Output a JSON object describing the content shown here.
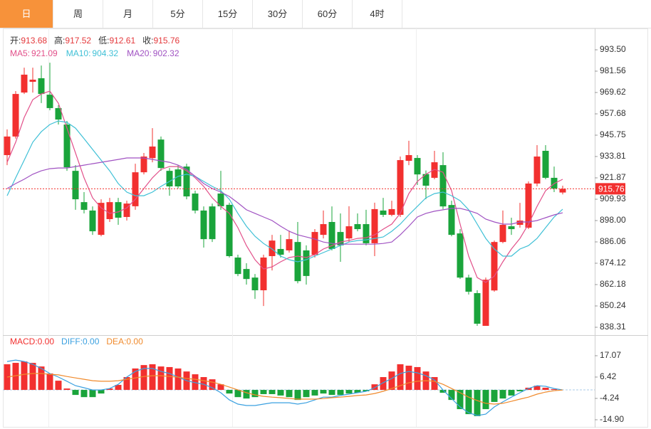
{
  "tabs": [
    "日",
    "周",
    "月",
    "5分",
    "15分",
    "30分",
    "60分",
    "4时"
  ],
  "active_tab": 0,
  "chart_data": [
    {
      "type": "candlestick",
      "info": [
        {
          "label": "开:",
          "value": 913.68
        },
        {
          "label": "高:",
          "value": 917.52
        },
        {
          "label": "低:",
          "value": 912.61
        },
        {
          "label": "收:",
          "value": 915.76
        }
      ],
      "info_value_color": "#e4393c",
      "legend": [
        {
          "label": "MA5:",
          "value": 921.09,
          "color": "#e2508a"
        },
        {
          "label": "MA10:",
          "value": 904.32,
          "color": "#3fc0d6"
        },
        {
          "label": "MA20:",
          "value": 902.32,
          "color": "#a052c2"
        }
      ],
      "up_color": "#f2302f",
      "down_color": "#1aa43b",
      "open": [
        934.6,
        945.0,
        969.6,
        975.6,
        977.6,
        968.4,
        960.9,
        951.7,
        925.8,
        908.3,
        903.6,
        890.0,
        898.8,
        908.3,
        900.0,
        906.0,
        925.0,
        932.9,
        943.3,
        925.8,
        926.6,
        928.2,
        913.1,
        903.6,
        905.9,
        913.1,
        906.8,
        877.3,
        870.9,
        866.1,
        859.0,
        878.1,
        882.1,
        881.3,
        886.0,
        881.3,
        878.9,
        890.0,
        897.2,
        891.6,
        888.0,
        896.0,
        896.0,
        885.3,
        903.6,
        901.2,
        901.2,
        931.4,
        933.0,
        924.0,
        921.9,
        929.0,
        906.7,
        890.8,
        866.1,
        857.4,
        839.1,
        858.9,
        886.0,
        894.8,
        895.6,
        894.0,
        918.7,
        937.0,
        921.9,
        913.68
      ],
      "high": [
        949.0,
        970.4,
        983.5,
        983.5,
        984.7,
        986.3,
        962.5,
        953.7,
        929.0,
        913.9,
        905.9,
        909.9,
        910.7,
        910.7,
        909.1,
        929.8,
        935.8,
        949.7,
        945.0,
        927.4,
        929.0,
        929.8,
        914.7,
        905.9,
        907.5,
        925.8,
        908.0,
        878.9,
        874.1,
        868.1,
        878.9,
        890.0,
        890.0,
        892.4,
        897.2,
        884.1,
        893.2,
        903.6,
        905.9,
        902.0,
        906.0,
        902.0,
        904.0,
        908.0,
        910.7,
        909.1,
        933.8,
        942.6,
        934.6,
        926.0,
        937.0,
        936.2,
        909.1,
        893.2,
        867.7,
        859.0,
        866.1,
        886.8,
        903.6,
        899.6,
        907.9,
        919.9,
        940.2,
        940.2,
        928.2,
        917.52
      ],
      "low": [
        929.0,
        943.8,
        968.8,
        969.6,
        963.7,
        959.7,
        951.7,
        925.8,
        904.0,
        902.0,
        890.0,
        889.2,
        897.2,
        895.6,
        898.0,
        904.0,
        923.8,
        930.6,
        925.8,
        911.9,
        915.9,
        909.9,
        902.0,
        882.9,
        886.0,
        904.0,
        877.3,
        866.9,
        862.2,
        854.2,
        850.2,
        870.1,
        877.3,
        880.1,
        862.9,
        862.2,
        877.3,
        888.0,
        881.3,
        874.9,
        886.0,
        892.0,
        884.1,
        878.1,
        900.0,
        900.4,
        900.0,
        929.0,
        917.9,
        910.0,
        921.1,
        904.4,
        889.2,
        865.3,
        856.6,
        839.1,
        839.1,
        858.2,
        885.3,
        890.0,
        894.0,
        893.2,
        917.1,
        921.1,
        913.9,
        912.61
      ],
      "close": [
        945.0,
        968.8,
        979.6,
        976.8,
        968.8,
        960.9,
        954.5,
        927.8,
        909.9,
        904.0,
        892.0,
        907.9,
        908.3,
        899.6,
        907.5,
        925.0,
        933.8,
        939.4,
        927.4,
        917.1,
        917.1,
        911.5,
        903.6,
        887.6,
        887.6,
        906.0,
        878.1,
        868.1,
        865.3,
        859.0,
        877.3,
        886.8,
        878.9,
        887.6,
        864.1,
        867.0,
        891.6,
        896.0,
        882.1,
        884.1,
        894.8,
        893.2,
        885.3,
        904.4,
        901.2,
        904.4,
        931.8,
        934.6,
        923.8,
        917.5,
        930.6,
        905.9,
        890.0,
        866.1,
        858.2,
        840.3,
        864.9,
        886.0,
        895.6,
        893.2,
        898.0,
        918.7,
        933.8,
        921.9,
        915.9,
        915.76
      ],
      "series": [
        {
          "color": "#e2508a",
          "values": [
            930.6,
            941.8,
            955.7,
            965.6,
            968.8,
            970.4,
            963.6,
            949.7,
            935.8,
            921.9,
            910.7,
            905.1,
            902.0,
            902.8,
            905.1,
            909.9,
            915.9,
            921.9,
            926.6,
            928.2,
            928.2,
            925.8,
            921.9,
            917.1,
            910.7,
            905.9,
            902.0,
            894.0,
            884.0,
            876.1,
            870.9,
            872.1,
            874.9,
            877.3,
            878.1,
            877.3,
            878.9,
            882.1,
            884.0,
            886.0,
            886.8,
            888.0,
            888.4,
            890.0,
            893.2,
            896.0,
            902.0,
            913.1,
            919.9,
            923.9,
            926.6,
            925.0,
            914.7,
            896.0,
            878.1,
            866.1,
            863.4,
            866.9,
            874.9,
            882.1,
            888.0,
            896.0,
            905.9,
            914.7,
            918.7,
            921.09
          ]
        },
        {
          "color": "#3fc0d6",
          "values": [
            911.9,
            921.9,
            931.8,
            941.8,
            947.7,
            951.7,
            953.7,
            952.9,
            949.7,
            943.8,
            937.8,
            931.8,
            925.8,
            918.7,
            913.9,
            911.9,
            911.9,
            913.9,
            917.1,
            919.9,
            922.7,
            923.9,
            922.7,
            919.9,
            917.1,
            914.7,
            909.9,
            902.0,
            894.8,
            889.2,
            885.2,
            882.1,
            878.1,
            876.1,
            874.9,
            876.1,
            878.1,
            880.1,
            882.1,
            884.0,
            886.0,
            886.8,
            887.2,
            888.0,
            888.8,
            892.0,
            896.0,
            901.2,
            905.9,
            910.7,
            913.1,
            913.9,
            911.9,
            909.1,
            904.0,
            896.0,
            888.0,
            882.1,
            878.1,
            878.1,
            882.1,
            884.0,
            888.0,
            894.0,
            900.0,
            904.32
          ]
        },
        {
          "color": "#a052c2",
          "values": [
            915.9,
            918.7,
            921.1,
            923.9,
            925.8,
            927.0,
            927.4,
            927.4,
            928.2,
            929.0,
            929.8,
            930.6,
            931.4,
            932.2,
            933.0,
            933.0,
            933.0,
            932.2,
            931.4,
            930.6,
            929.0,
            926.6,
            922.7,
            918.7,
            915.9,
            913.9,
            911.5,
            907.9,
            904.0,
            902.0,
            900.0,
            898.0,
            894.8,
            892.0,
            890.0,
            888.8,
            887.6,
            886.0,
            885.2,
            884.8,
            884.8,
            884.8,
            884.8,
            884.8,
            885.2,
            886.0,
            890.0,
            894.8,
            900.0,
            902.0,
            903.2,
            904.0,
            904.8,
            904.8,
            903.6,
            902.0,
            898.8,
            897.2,
            896.0,
            896.0,
            897.2,
            897.2,
            898.0,
            899.6,
            901.2,
            902.32
          ]
        }
      ],
      "last_price": 915.76,
      "ylim": [
        834.33,
        1005.44
      ],
      "yticks": [
        {
          "value": 993.5,
          "label": "993.50"
        },
        981.56,
        969.62,
        957.68,
        945.75,
        933.81,
        921.87,
        909.93,
        {
          "value": 898,
          "label": "898.00"
        },
        886.06,
        874.12,
        862.18,
        850.24,
        838.31
      ]
    },
    {
      "type": "macd",
      "legend": [
        {
          "label": "MACD:",
          "value": 0,
          "value_label": "0.00",
          "color": "#f2302f"
        },
        {
          "label": "DIFF:",
          "value": 0,
          "value_label": "0.00",
          "color": "#3aa0e0"
        },
        {
          "label": "DEA:",
          "value": 0,
          "value_label": "0.00",
          "color": "#f08a2c"
        }
      ],
      "up_color": "#f2302f",
      "down_color": "#1aa43b",
      "histogram": [
        12.8,
        13.5,
        14.2,
        13.5,
        11.7,
        8.2,
        4.6,
        0.7,
        -2.5,
        -3.6,
        -3.6,
        -1.8,
        0.7,
        2.5,
        6.4,
        10.7,
        12.4,
        12.8,
        11.7,
        11.4,
        10.7,
        9.2,
        7.8,
        6.4,
        5.3,
        2.8,
        -1.8,
        -3.6,
        -4.3,
        -3.6,
        -2.1,
        -2.1,
        -2.8,
        -3.6,
        -5.0,
        -3.6,
        -2.8,
        -1.8,
        -2.5,
        -2.5,
        -1.8,
        -1.4,
        -0.7,
        2.8,
        6.4,
        9.2,
        12.8,
        12.1,
        11.4,
        9.2,
        6.4,
        -1.4,
        -5.0,
        -9.6,
        -12.1,
        -13.1,
        -9.6,
        -6.0,
        -4.3,
        -2.8,
        -0.7,
        1.1,
        2.1,
        1.1,
        0.4,
        0
      ],
      "series": [
        {
          "color": "#3aa0e0",
          "values": [
            14.2,
            14.9,
            14.2,
            12.8,
            10.7,
            8.2,
            6.4,
            4.3,
            2.1,
            1.1,
            0,
            0,
            0.7,
            2.8,
            6.4,
            9.2,
            10.7,
            10.7,
            9.2,
            8.2,
            6.4,
            4.6,
            3.6,
            2.8,
            1.1,
            -1.4,
            -5.0,
            -7.1,
            -7.8,
            -7.8,
            -7.1,
            -6.4,
            -6.4,
            -6.4,
            -7.1,
            -6.4,
            -5.0,
            -3.6,
            -3.6,
            -2.8,
            -2.1,
            -1.4,
            -0.7,
            1.1,
            3.6,
            5.7,
            8.2,
            9.2,
            8.5,
            7.1,
            5.0,
            0,
            -4.3,
            -8.5,
            -11.4,
            -12.8,
            -12.1,
            -8.5,
            -6.0,
            -3.6,
            -1.4,
            0.7,
            2.1,
            1.8,
            0.7,
            0
          ]
        },
        {
          "color": "#f08a2c",
          "values": [
            6.4,
            7.1,
            7.8,
            8.2,
            8.2,
            7.8,
            7.5,
            6.7,
            6.0,
            5.3,
            4.6,
            4.3,
            4.3,
            4.6,
            5.3,
            6.0,
            6.7,
            7.1,
            7.1,
            6.7,
            6.4,
            5.7,
            5.3,
            4.6,
            3.9,
            2.8,
            1.4,
            0,
            -1.4,
            -2.5,
            -3.2,
            -3.6,
            -3.9,
            -4.3,
            -4.6,
            -4.6,
            -4.6,
            -4.3,
            -3.9,
            -3.6,
            -3.2,
            -2.8,
            -2.5,
            -1.8,
            -0.7,
            0.7,
            2.1,
            3.6,
            4.3,
            4.6,
            4.3,
            2.8,
            0.7,
            -1.4,
            -3.6,
            -5.3,
            -6.7,
            -7.1,
            -6.7,
            -5.7,
            -4.6,
            -3.6,
            -2.1,
            -1.1,
            -0.4,
            0
          ]
        }
      ],
      "ylim": [
        -18.45,
        27.01
      ],
      "yticks": [
        17.07,
        6.42,
        -4.24,
        {
          "value": -14.9,
          "label": "-14.90"
        }
      ]
    }
  ]
}
